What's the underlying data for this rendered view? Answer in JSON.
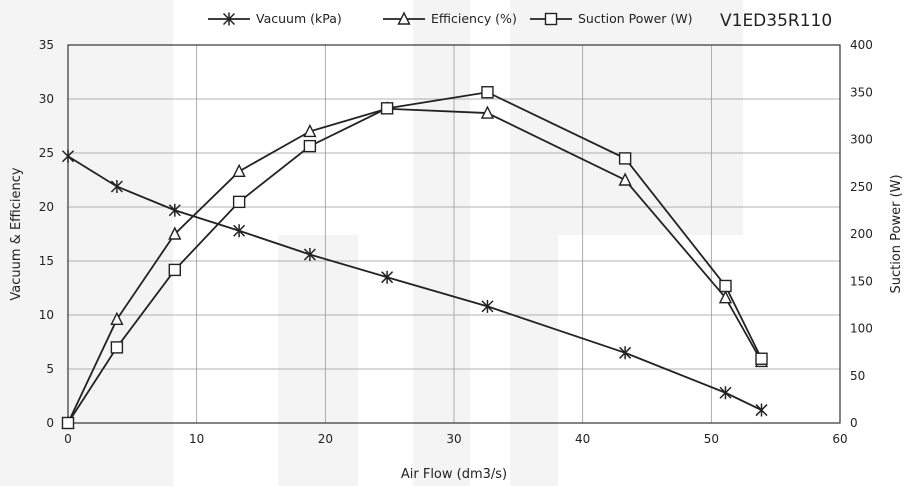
{
  "chart_data": {
    "type": "line",
    "title": "V1ED35R110",
    "xlabel": "Air Flow (dm3/s)",
    "ylabel": "Vacuum & Efficiency",
    "y2label": "Suction Power (W)",
    "xlim": [
      0,
      60
    ],
    "ylim": [
      0,
      35
    ],
    "y2lim": [
      0,
      400
    ],
    "xticks": [
      0,
      10,
      20,
      30,
      40,
      50,
      60
    ],
    "yticks": [
      0,
      5,
      10,
      15,
      20,
      25,
      30,
      35
    ],
    "y2ticks": [
      0,
      50,
      100,
      150,
      200,
      250,
      300,
      350,
      400
    ],
    "grid": true,
    "legend_position": "top",
    "series": [
      {
        "name": "Vacuum (kPa)",
        "axis": "left",
        "marker": "asterisk",
        "x": [
          0,
          3.8,
          8.3,
          13.3,
          18.8,
          24.8,
          32.6,
          43.3,
          51.1,
          53.9
        ],
        "y": [
          24.7,
          21.9,
          19.7,
          17.8,
          15.6,
          13.5,
          10.8,
          6.5,
          2.8,
          1.2
        ]
      },
      {
        "name": "Efficiency (%)",
        "axis": "left",
        "marker": "triangle",
        "x": [
          0,
          3.8,
          8.3,
          13.3,
          18.8,
          24.8,
          32.6,
          43.3,
          51.1,
          53.9
        ],
        "y": [
          0,
          9.6,
          17.5,
          23.3,
          27.0,
          29.1,
          28.7,
          22.5,
          11.6,
          5.7
        ]
      },
      {
        "name": "Suction Power (W)",
        "axis": "right",
        "marker": "square",
        "x": [
          0,
          3.8,
          8.3,
          13.3,
          18.8,
          24.8,
          32.6,
          43.3,
          51.1,
          53.9
        ],
        "y": [
          0,
          80,
          162,
          234,
          293,
          333,
          350,
          280,
          145,
          68
        ]
      }
    ]
  }
}
